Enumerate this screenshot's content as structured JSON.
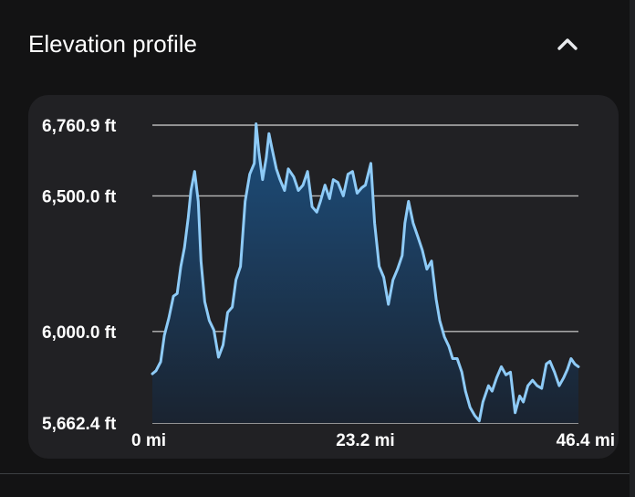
{
  "header": {
    "title": "Elevation profile",
    "collapse_icon": "chevron-up-icon"
  },
  "colors": {
    "line": "#8ecbf7",
    "fill_top": "#1d4f7e",
    "fill_bottom": "#1a2330",
    "card": "#212124",
    "grid": "#b8b8b8",
    "background": "#131314"
  },
  "chart_data": {
    "type": "area",
    "title": "Elevation profile",
    "xlabel": "",
    "ylabel": "",
    "x_unit": "mi",
    "y_unit": "ft",
    "xlim": [
      0,
      46.4
    ],
    "ylim": [
      5662.4,
      6760.9
    ],
    "grid": true,
    "y_ticks": [
      {
        "value": 6760.9,
        "label": "6,760.9 ft"
      },
      {
        "value": 6500.0,
        "label": "6,500.0 ft"
      },
      {
        "value": 6000.0,
        "label": "6,000.0 ft"
      },
      {
        "value": 5662.4,
        "label": "5,662.4 ft"
      }
    ],
    "x_ticks": [
      {
        "value": 0,
        "label": "0 mi"
      },
      {
        "value": 23.2,
        "label": "23.2 mi"
      },
      {
        "value": 46.4,
        "label": "46.4 mi"
      }
    ],
    "series": [
      {
        "x": [
          0.0,
          0.4,
          0.9,
          1.3,
          1.8,
          2.3,
          2.7,
          3.1,
          3.5,
          3.9,
          4.2,
          4.6,
          5.0,
          5.3,
          5.7,
          6.2,
          6.7,
          7.2,
          7.7,
          8.2,
          8.7,
          9.1,
          9.6,
          10.1,
          10.6,
          11.1,
          11.3,
          11.6,
          12.0,
          12.4,
          12.7,
          13.0,
          13.5,
          13.9,
          14.4,
          14.8,
          15.4,
          15.9,
          16.4,
          16.9,
          17.4,
          17.9,
          18.3,
          18.8,
          19.3,
          19.7,
          20.2,
          20.8,
          21.3,
          21.8,
          22.3,
          22.8,
          23.2,
          23.8,
          24.2,
          24.7,
          25.2,
          25.7,
          26.2,
          26.7,
          27.2,
          27.5,
          27.9,
          28.4,
          28.9,
          29.4,
          29.9,
          30.4,
          30.9,
          31.3,
          31.8,
          32.3,
          32.7,
          33.2,
          33.7,
          34.1,
          34.6,
          35.1,
          35.6,
          36.0,
          36.6,
          37.0,
          37.5,
          38.0,
          38.5,
          39.0,
          39.5,
          40.0,
          40.4,
          40.9,
          41.4,
          41.9,
          42.4,
          42.9,
          43.3,
          43.8,
          44.3,
          44.8,
          45.2,
          45.6,
          46.0,
          46.4
        ],
        "y": [
          5844,
          5855,
          5888,
          5985,
          6050,
          6130,
          6140,
          6240,
          6310,
          6420,
          6520,
          6590,
          6480,
          6260,
          6110,
          6040,
          6005,
          5905,
          5950,
          6070,
          6090,
          6190,
          6240,
          6480,
          6580,
          6620,
          6766,
          6660,
          6560,
          6640,
          6730,
          6680,
          6600,
          6560,
          6520,
          6600,
          6570,
          6520,
          6540,
          6590,
          6460,
          6440,
          6480,
          6540,
          6490,
          6560,
          6550,
          6500,
          6580,
          6590,
          6510,
          6530,
          6540,
          6620,
          6400,
          6240,
          6200,
          6100,
          6190,
          6230,
          6280,
          6400,
          6480,
          6400,
          6350,
          6300,
          6230,
          6260,
          6120,
          6040,
          5980,
          5944,
          5900,
          5900,
          5850,
          5780,
          5720,
          5690,
          5670,
          5740,
          5800,
          5780,
          5830,
          5870,
          5840,
          5850,
          5700,
          5762,
          5740,
          5800,
          5820,
          5800,
          5790,
          5880,
          5890,
          5850,
          5800,
          5830,
          5860,
          5900,
          5880,
          5870
        ]
      }
    ]
  }
}
